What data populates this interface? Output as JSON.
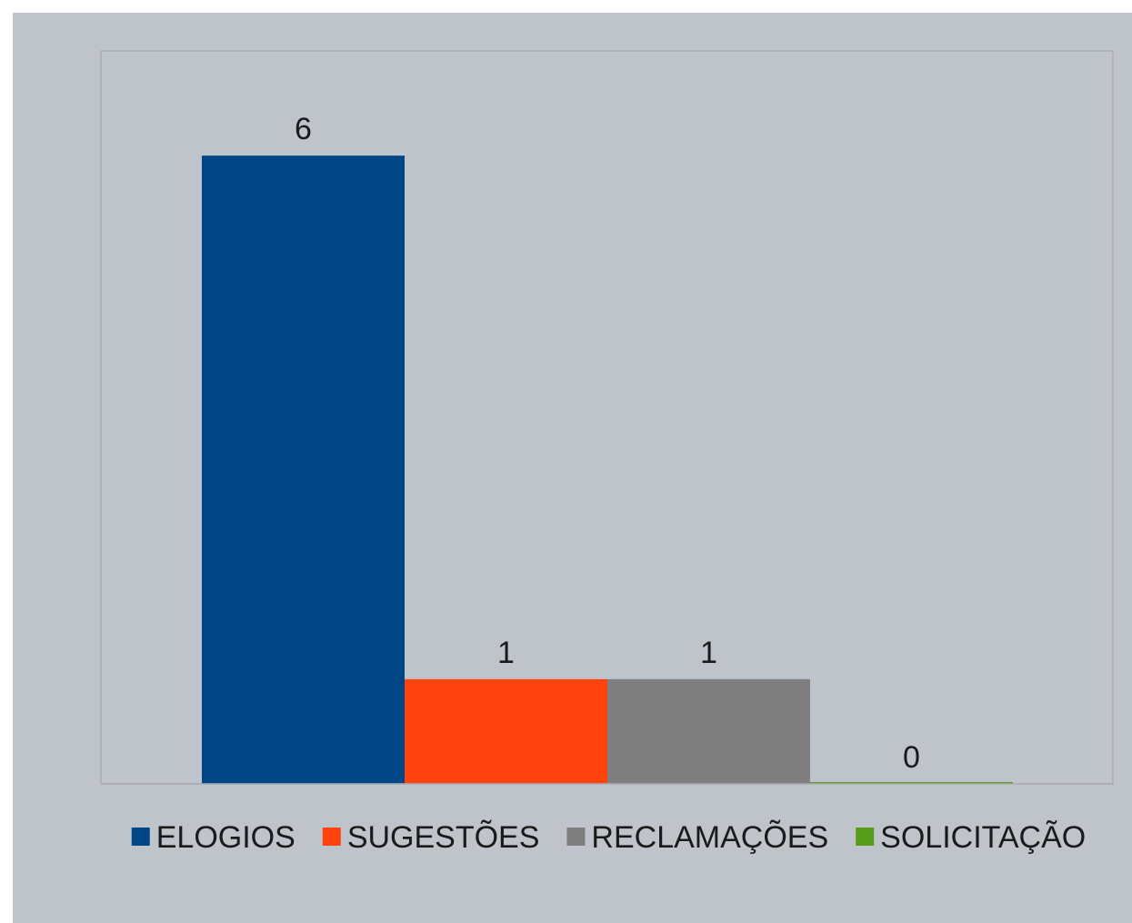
{
  "chart_data": {
    "type": "bar",
    "title": "",
    "xlabel": "",
    "ylabel": "",
    "ylim": [
      0,
      7
    ],
    "grid": false,
    "legend_position": "bottom",
    "background_color": "#bfc3ca",
    "plot_border_color": "#a9adb3",
    "series": [
      {
        "name": "ELOGIOS",
        "values": [
          6
        ],
        "color": "#004586"
      },
      {
        "name": "SUGESTÕES",
        "values": [
          1
        ],
        "color": "#ff420e"
      },
      {
        "name": "RECLAMAÇÕES",
        "values": [
          1
        ],
        "color": "#7f7f7f"
      },
      {
        "name": "SOLICITAÇÃO",
        "values": [
          0
        ],
        "color": "#579d1c"
      }
    ]
  }
}
